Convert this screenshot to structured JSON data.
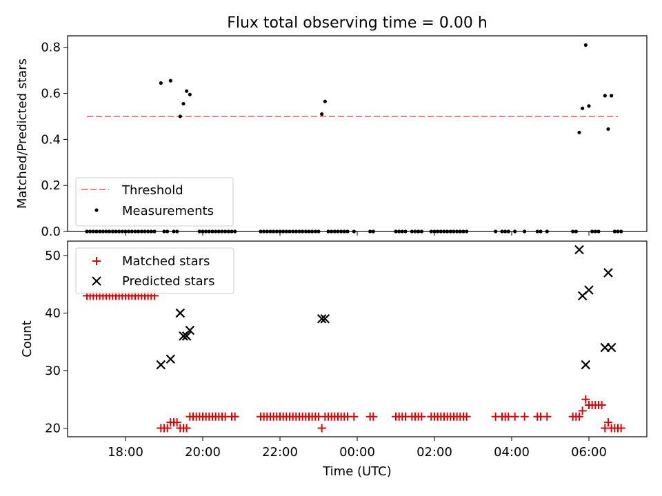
{
  "title": "Flux total observing time = 0.00 h",
  "colors": {
    "threshold": "#ff7f7f",
    "measurement": "#000000",
    "matched": "#e00000",
    "predicted": "#000000"
  },
  "chart_data": [
    {
      "type": "scatter",
      "title": "Flux total observing time = 0.00 h",
      "ylabel": "Matched/Predicted stars",
      "xlabel": "",
      "xlim": [
        "16:30",
        "07:30"
      ],
      "ylim": [
        0,
        0.85
      ],
      "yticks": [
        "0.0",
        "0.2",
        "0.4",
        "0.6",
        "0.8"
      ],
      "yticks_values": [
        0,
        0.2,
        0.4,
        0.6,
        0.8
      ],
      "grid": false,
      "legend": "lower-left",
      "threshold": {
        "name": "Threshold",
        "value": 0.5,
        "x_range": [
          "17:00",
          "06:45"
        ]
      },
      "series": [
        {
          "name": "Measurements",
          "points": [
            [
              "18:55",
              0.645
            ],
            [
              "19:10",
              0.655
            ],
            [
              "19:25",
              0.5
            ],
            [
              "19:30",
              0.555
            ],
            [
              "19:35",
              0.61
            ],
            [
              "19:40",
              0.595
            ],
            [
              "23:05",
              0.51
            ],
            [
              "23:10",
              0.565
            ],
            [
              "05:45",
              0.43
            ],
            [
              "05:50",
              0.535
            ],
            [
              "05:55",
              0.81
            ],
            [
              "06:00",
              0.545
            ],
            [
              "06:25",
              0.59
            ],
            [
              "06:30",
              0.445
            ],
            [
              "06:35",
              0.59
            ],
            [
              "17:00",
              0
            ],
            [
              "17:05",
              0
            ],
            [
              "17:10",
              0
            ],
            [
              "17:15",
              0
            ],
            [
              "17:20",
              0
            ],
            [
              "17:25",
              0
            ],
            [
              "17:30",
              0
            ],
            [
              "17:35",
              0
            ],
            [
              "17:40",
              0
            ],
            [
              "17:45",
              0
            ],
            [
              "17:50",
              0
            ],
            [
              "17:55",
              0
            ],
            [
              "18:00",
              0
            ],
            [
              "18:05",
              0
            ],
            [
              "18:10",
              0
            ],
            [
              "18:15",
              0
            ],
            [
              "18:20",
              0
            ],
            [
              "18:25",
              0
            ],
            [
              "18:30",
              0
            ],
            [
              "18:35",
              0
            ],
            [
              "18:40",
              0
            ],
            [
              "18:45",
              0
            ],
            [
              "19:00",
              0
            ],
            [
              "19:05",
              0
            ],
            [
              "19:15",
              0
            ],
            [
              "19:20",
              0
            ],
            [
              "19:55",
              0
            ],
            [
              "20:00",
              0
            ],
            [
              "20:05",
              0
            ],
            [
              "20:10",
              0
            ],
            [
              "20:15",
              0
            ],
            [
              "20:20",
              0
            ],
            [
              "20:25",
              0
            ],
            [
              "20:30",
              0
            ],
            [
              "20:35",
              0
            ],
            [
              "20:40",
              0
            ],
            [
              "20:45",
              0
            ],
            [
              "20:50",
              0
            ],
            [
              "21:30",
              0
            ],
            [
              "21:35",
              0
            ],
            [
              "21:40",
              0
            ],
            [
              "21:45",
              0
            ],
            [
              "21:50",
              0
            ],
            [
              "21:55",
              0
            ],
            [
              "22:00",
              0
            ],
            [
              "22:05",
              0
            ],
            [
              "22:10",
              0
            ],
            [
              "22:15",
              0
            ],
            [
              "22:20",
              0
            ],
            [
              "22:25",
              0
            ],
            [
              "22:30",
              0
            ],
            [
              "22:35",
              0
            ],
            [
              "22:40",
              0
            ],
            [
              "22:45",
              0
            ],
            [
              "22:50",
              0
            ],
            [
              "22:55",
              0
            ],
            [
              "23:00",
              0
            ],
            [
              "23:15",
              0
            ],
            [
              "23:20",
              0
            ],
            [
              "23:25",
              0
            ],
            [
              "23:30",
              0
            ],
            [
              "23:35",
              0
            ],
            [
              "23:40",
              0
            ],
            [
              "23:45",
              0
            ],
            [
              "23:55",
              0
            ],
            [
              "00:20",
              0
            ],
            [
              "00:25",
              0
            ],
            [
              "01:00",
              0
            ],
            [
              "01:05",
              0
            ],
            [
              "01:10",
              0
            ],
            [
              "01:15",
              0
            ],
            [
              "01:25",
              0
            ],
            [
              "01:30",
              0
            ],
            [
              "01:35",
              0
            ],
            [
              "01:40",
              0
            ],
            [
              "01:55",
              0
            ],
            [
              "02:00",
              0
            ],
            [
              "02:05",
              0
            ],
            [
              "02:10",
              0
            ],
            [
              "02:15",
              0
            ],
            [
              "02:20",
              0
            ],
            [
              "02:25",
              0
            ],
            [
              "02:30",
              0
            ],
            [
              "02:35",
              0
            ],
            [
              "02:40",
              0
            ],
            [
              "02:45",
              0
            ],
            [
              "02:50",
              0
            ],
            [
              "03:35",
              0
            ],
            [
              "03:45",
              0
            ],
            [
              "03:50",
              0
            ],
            [
              "03:55",
              0
            ],
            [
              "04:05",
              0
            ],
            [
              "04:20",
              0
            ],
            [
              "04:40",
              0
            ],
            [
              "04:45",
              0
            ],
            [
              "04:55",
              0
            ],
            [
              "05:35",
              0
            ],
            [
              "05:40",
              0
            ],
            [
              "06:05",
              0
            ],
            [
              "06:10",
              0
            ],
            [
              "06:15",
              0
            ],
            [
              "06:40",
              0
            ],
            [
              "06:45",
              0
            ],
            [
              "06:50",
              0
            ]
          ]
        }
      ]
    },
    {
      "type": "scatter",
      "title": "",
      "xlabel": "Time (UTC)",
      "ylabel": "Count",
      "xlim": [
        "16:30",
        "07:30"
      ],
      "ylim": [
        18.5,
        52.5
      ],
      "xticks": [
        "18:00",
        "20:00",
        "22:00",
        "00:00",
        "02:00",
        "04:00",
        "06:00"
      ],
      "yticks": [
        "20",
        "30",
        "40",
        "50"
      ],
      "yticks_values": [
        20,
        30,
        40,
        50
      ],
      "grid": false,
      "legend": "top-left",
      "series": [
        {
          "name": "Matched stars",
          "marker": "plus",
          "points": [
            [
              "17:00",
              43
            ],
            [
              "17:05",
              43
            ],
            [
              "17:10",
              43
            ],
            [
              "17:15",
              43
            ],
            [
              "17:20",
              43
            ],
            [
              "17:25",
              43
            ],
            [
              "17:30",
              43
            ],
            [
              "17:35",
              43
            ],
            [
              "17:40",
              43
            ],
            [
              "17:45",
              43
            ],
            [
              "17:50",
              43
            ],
            [
              "17:55",
              43
            ],
            [
              "18:00",
              43
            ],
            [
              "18:05",
              43
            ],
            [
              "18:10",
              43
            ],
            [
              "18:15",
              43
            ],
            [
              "18:20",
              43
            ],
            [
              "18:25",
              43
            ],
            [
              "18:30",
              43
            ],
            [
              "18:35",
              43
            ],
            [
              "18:40",
              43
            ],
            [
              "18:45",
              43
            ],
            [
              "18:55",
              20
            ],
            [
              "19:00",
              20
            ],
            [
              "19:05",
              20
            ],
            [
              "19:10",
              21
            ],
            [
              "19:15",
              21
            ],
            [
              "19:20",
              21
            ],
            [
              "19:25",
              20
            ],
            [
              "19:30",
              20
            ],
            [
              "19:35",
              20
            ],
            [
              "19:40",
              22
            ],
            [
              "19:45",
              22
            ],
            [
              "19:50",
              22
            ],
            [
              "19:55",
              22
            ],
            [
              "20:00",
              22
            ],
            [
              "20:05",
              22
            ],
            [
              "20:10",
              22
            ],
            [
              "20:15",
              22
            ],
            [
              "20:20",
              22
            ],
            [
              "20:25",
              22
            ],
            [
              "20:30",
              22
            ],
            [
              "20:35",
              22
            ],
            [
              "20:45",
              22
            ],
            [
              "20:50",
              22
            ],
            [
              "21:30",
              22
            ],
            [
              "21:35",
              22
            ],
            [
              "21:40",
              22
            ],
            [
              "21:45",
              22
            ],
            [
              "21:50",
              22
            ],
            [
              "21:55",
              22
            ],
            [
              "22:00",
              22
            ],
            [
              "22:05",
              22
            ],
            [
              "22:10",
              22
            ],
            [
              "22:15",
              22
            ],
            [
              "22:20",
              22
            ],
            [
              "22:25",
              22
            ],
            [
              "22:30",
              22
            ],
            [
              "22:35",
              22
            ],
            [
              "22:40",
              22
            ],
            [
              "22:45",
              22
            ],
            [
              "22:50",
              22
            ],
            [
              "22:55",
              22
            ],
            [
              "23:00",
              22
            ],
            [
              "23:05",
              20
            ],
            [
              "23:10",
              22
            ],
            [
              "23:15",
              22
            ],
            [
              "23:20",
              22
            ],
            [
              "23:25",
              22
            ],
            [
              "23:30",
              22
            ],
            [
              "23:35",
              22
            ],
            [
              "23:40",
              22
            ],
            [
              "23:45",
              22
            ],
            [
              "23:55",
              22
            ],
            [
              "00:20",
              22
            ],
            [
              "00:25",
              22
            ],
            [
              "01:00",
              22
            ],
            [
              "01:05",
              22
            ],
            [
              "01:10",
              22
            ],
            [
              "01:15",
              22
            ],
            [
              "01:25",
              22
            ],
            [
              "01:30",
              22
            ],
            [
              "01:35",
              22
            ],
            [
              "01:40",
              22
            ],
            [
              "01:55",
              22
            ],
            [
              "02:00",
              22
            ],
            [
              "02:05",
              22
            ],
            [
              "02:10",
              22
            ],
            [
              "02:15",
              22
            ],
            [
              "02:20",
              22
            ],
            [
              "02:25",
              22
            ],
            [
              "02:30",
              22
            ],
            [
              "02:35",
              22
            ],
            [
              "02:40",
              22
            ],
            [
              "02:45",
              22
            ],
            [
              "02:50",
              22
            ],
            [
              "03:35",
              22
            ],
            [
              "03:45",
              22
            ],
            [
              "03:50",
              22
            ],
            [
              "03:55",
              22
            ],
            [
              "04:05",
              22
            ],
            [
              "04:20",
              22
            ],
            [
              "04:40",
              22
            ],
            [
              "04:45",
              22
            ],
            [
              "04:55",
              22
            ],
            [
              "05:35",
              22
            ],
            [
              "05:40",
              22
            ],
            [
              "05:45",
              22
            ],
            [
              "05:50",
              23
            ],
            [
              "05:55",
              25
            ],
            [
              "06:00",
              24
            ],
            [
              "06:05",
              24
            ],
            [
              "06:10",
              24
            ],
            [
              "06:15",
              24
            ],
            [
              "06:20",
              24
            ],
            [
              "06:25",
              20
            ],
            [
              "06:30",
              21
            ],
            [
              "06:35",
              20
            ],
            [
              "06:40",
              20
            ],
            [
              "06:45",
              20
            ],
            [
              "06:50",
              20
            ]
          ]
        },
        {
          "name": "Predicted stars",
          "marker": "x",
          "points": [
            [
              "18:55",
              31
            ],
            [
              "19:10",
              32
            ],
            [
              "19:25",
              40
            ],
            [
              "19:30",
              36
            ],
            [
              "19:35",
              36
            ],
            [
              "19:40",
              37
            ],
            [
              "23:05",
              39
            ],
            [
              "23:10",
              39
            ],
            [
              "05:45",
              51
            ],
            [
              "05:50",
              43
            ],
            [
              "05:55",
              31
            ],
            [
              "06:00",
              44
            ],
            [
              "06:25",
              34
            ],
            [
              "06:30",
              47
            ],
            [
              "06:35",
              34
            ]
          ]
        }
      ]
    }
  ]
}
